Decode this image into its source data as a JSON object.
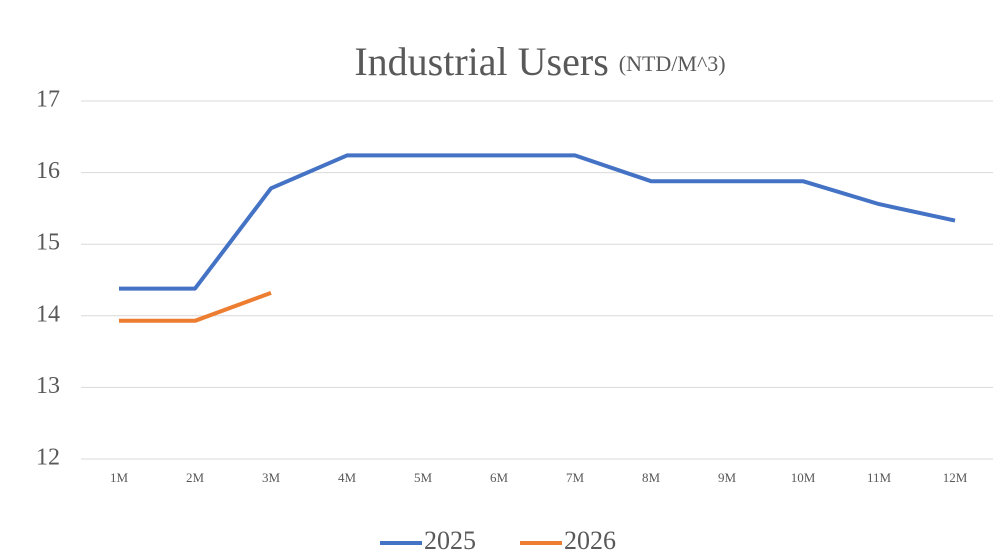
{
  "chart_data": {
    "type": "line",
    "title": "Industrial Users",
    "subtitle": "(NTD/M^3)",
    "categories": [
      "1M",
      "2M",
      "3M",
      "4M",
      "5M",
      "6M",
      "7M",
      "8M",
      "9M",
      "10M",
      "11M",
      "12M"
    ],
    "series": [
      {
        "name": "2025",
        "color": "#4472c4",
        "values": [
          14.38,
          14.38,
          15.78,
          16.24,
          16.24,
          16.24,
          16.24,
          15.88,
          15.88,
          15.88,
          15.56,
          15.33
        ]
      },
      {
        "name": "2026",
        "color": "#ed7d31",
        "values": [
          13.93,
          13.93,
          14.32,
          null,
          null,
          null,
          null,
          null,
          null,
          null,
          null,
          null
        ]
      }
    ],
    "ylim": [
      12,
      17
    ],
    "yticks": [
      12,
      13,
      14,
      15,
      16,
      17
    ],
    "grid": true,
    "legend": "bottom"
  }
}
